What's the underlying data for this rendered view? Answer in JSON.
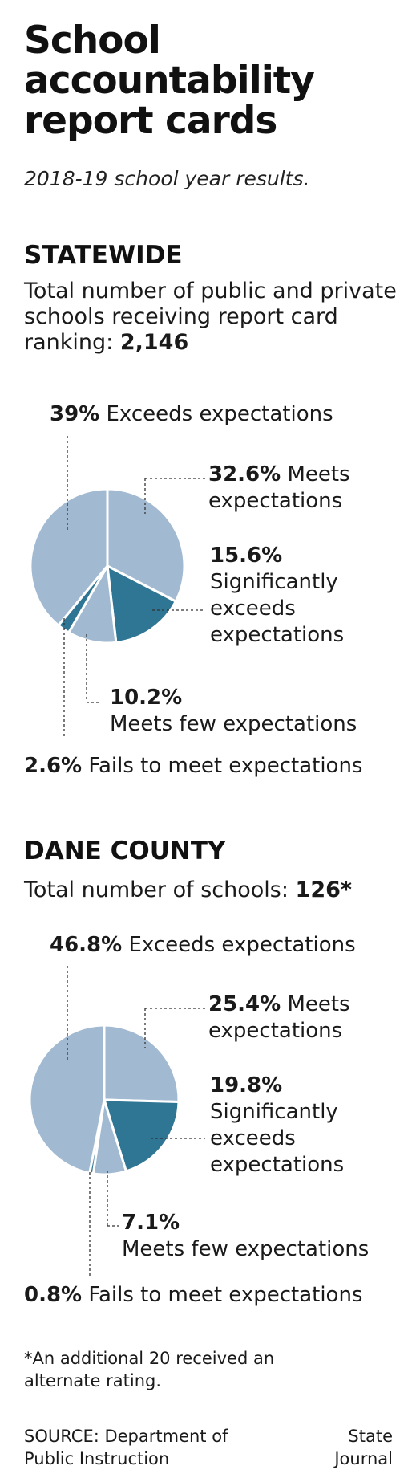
{
  "title": "School accountability report cards",
  "subtitle": "2018-19 school year results.",
  "colors": {
    "light": "#a2bad1",
    "dark": "#2f7594"
  },
  "sections": [
    {
      "heading": "STATEWIDE",
      "desc_text": "Total number of public and private schools receiving report card ranking:",
      "desc_value": "2,146"
    },
    {
      "heading": "DANE COUNTY",
      "desc_text": "Total number of schools:",
      "desc_value": "126*"
    }
  ],
  "chart_data": [
    {
      "type": "pie",
      "slices": [
        {
          "label": "Meets expectations",
          "label_lines": [
            "Meets",
            "expectations"
          ],
          "pct_text": "32.6%",
          "value": 32.6,
          "color": "light"
        },
        {
          "label": "Significantly exceeds expectations",
          "label_lines": [
            "",
            "Significantly",
            "exceeds",
            "expectations"
          ],
          "pct_text": "15.6%",
          "value": 15.6,
          "color": "dark"
        },
        {
          "label": "Meets few expectations",
          "label_lines": [
            "",
            "Meets few expectations"
          ],
          "pct_text": "10.2%",
          "value": 10.2,
          "color": "light"
        },
        {
          "label": "Fails to meet expectations",
          "label_lines": [
            "Fails to meet expectations"
          ],
          "pct_text": "2.6%",
          "value": 2.6,
          "color": "dark"
        },
        {
          "label": "Exceeds expectations",
          "label_lines": [
            "Exceeds expectations"
          ],
          "pct_text": "39%",
          "value": 39,
          "color": "light"
        }
      ]
    },
    {
      "type": "pie",
      "slices": [
        {
          "label": "Meets expectations",
          "label_lines": [
            "Meets",
            "expectations"
          ],
          "pct_text": "25.4%",
          "value": 25.4,
          "color": "light"
        },
        {
          "label": "Significantly exceeds expectations",
          "label_lines": [
            "",
            "Significantly",
            "exceeds",
            "expectations"
          ],
          "pct_text": "19.8%",
          "value": 19.8,
          "color": "dark"
        },
        {
          "label": "Meets few expectations",
          "label_lines": [
            "",
            "Meets few expectations"
          ],
          "pct_text": "7.1%",
          "value": 7.1,
          "color": "light"
        },
        {
          "label": "Fails to meet expectations",
          "label_lines": [
            "Fails to meet expectations"
          ],
          "pct_text": "0.8%",
          "value": 0.8,
          "color": "dark"
        },
        {
          "label": "Exceeds expectations",
          "label_lines": [
            "Exceeds expectations"
          ],
          "pct_text": "46.8%",
          "value": 46.8,
          "color": "light"
        }
      ]
    }
  ],
  "footnote": "*An additional 20 received an alternate rating.",
  "source": "SOURCE: Department of Public Instruction",
  "credit": "State Journal"
}
